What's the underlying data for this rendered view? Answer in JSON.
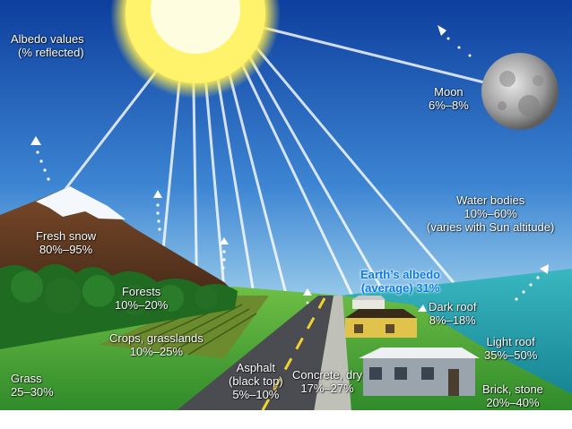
{
  "title": {
    "line1": "Albedo values",
    "line2": "(% reflected)"
  },
  "labels": {
    "moon": {
      "name": "Moon",
      "value": "6%–8%"
    },
    "fresh_snow": {
      "name": "Fresh snow",
      "value": "80%–95%"
    },
    "forests": {
      "name": "Forests",
      "value": "10%–20%"
    },
    "crops": {
      "name": "Crops, grasslands",
      "value": "10%–25%"
    },
    "grass": {
      "name": "Grass",
      "value": "25–30%"
    },
    "asphalt": {
      "name": "Asphalt",
      "name2": "(black top)",
      "value": "5%–10%"
    },
    "concrete": {
      "name": "Concrete, dry",
      "value": "17%–27%"
    },
    "water": {
      "name": "Water bodies",
      "value": "10%–60%",
      "note": "(varies with Sun altitude)"
    },
    "earth": {
      "name": "Earth’s albedo",
      "value": "(average) 31%"
    },
    "dark_roof": {
      "name": "Dark roof",
      "value": "8%–18%"
    },
    "light_roof": {
      "name": "Light roof",
      "value": "35%–50%"
    },
    "brick": {
      "name": "Brick, stone",
      "value": "20%–40%"
    }
  },
  "colors": {
    "sky_top": "#0d3f9e",
    "sky_bottom": "#bfe3f2",
    "sun": "#fff36b",
    "earth_label": "#0a7be6",
    "grass": "#4fa93a",
    "water": "#1e97a3"
  }
}
